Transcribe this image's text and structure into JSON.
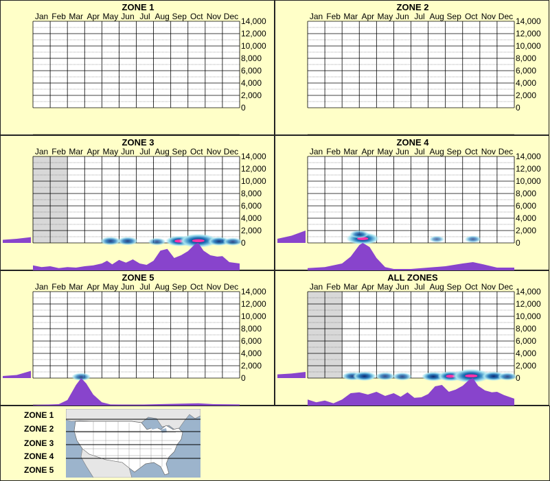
{
  "months": [
    "Jan",
    "Feb",
    "Mar",
    "Apr",
    "May",
    "Jun",
    "Jul",
    "Aug",
    "Sep",
    "Oct",
    "Nov",
    "Dec"
  ],
  "y_ticks": [
    "14,000",
    "12,000",
    "10,000",
    "8,000",
    "6,000",
    "4,000",
    "2,000",
    "0"
  ],
  "colors": {
    "background": "#ffffc8",
    "grid": "#000000",
    "density": "#8844cc",
    "shade": "#d8d8d8",
    "heat_low": "#a8e4f0",
    "heat_mid": "#2277bb",
    "heat_high": "#001a66",
    "heat_peak": "#ff33aa"
  },
  "chart_data": [
    {
      "type": "heatmap",
      "title": "ZONE 1",
      "ylim": [
        0,
        14000
      ],
      "shaded_months": [],
      "elevation_profile": [],
      "heat": [],
      "monthly_density": []
    },
    {
      "type": "heatmap",
      "title": "ZONE 2",
      "ylim": [
        0,
        14000
      ],
      "shaded_months": [],
      "elevation_profile": [],
      "heat": [],
      "monthly_density": []
    },
    {
      "type": "heatmap",
      "title": "ZONE 3",
      "ylim": [
        0,
        14000
      ],
      "shaded_months": [
        "Jan",
        "Feb"
      ],
      "elevation_profile": [
        0.15,
        0.2,
        0.28
      ],
      "heat": [
        {
          "month": 4.5,
          "elevation": 300,
          "intensity": 0.35
        },
        {
          "month": 5.5,
          "elevation": 300,
          "intensity": 0.35
        },
        {
          "month": 7.2,
          "elevation": 200,
          "intensity": 0.25
        },
        {
          "month": 8.5,
          "elevation": 300,
          "intensity": 0.6
        },
        {
          "month": 9.6,
          "elevation": 350,
          "intensity": 1.0
        },
        {
          "month": 10.8,
          "elevation": 250,
          "intensity": 0.4
        },
        {
          "month": 11.6,
          "elevation": 200,
          "intensity": 0.3
        }
      ],
      "monthly_density": [
        [
          0.0,
          0.18
        ],
        [
          0.5,
          0.12
        ],
        [
          1.0,
          0.15
        ],
        [
          1.5,
          0.08
        ],
        [
          2.0,
          0.12
        ],
        [
          2.5,
          0.1
        ],
        [
          3.0,
          0.15
        ],
        [
          3.5,
          0.18
        ],
        [
          4.0,
          0.25
        ],
        [
          4.3,
          0.35
        ],
        [
          4.6,
          0.22
        ],
        [
          5.0,
          0.38
        ],
        [
          5.4,
          0.28
        ],
        [
          5.8,
          0.4
        ],
        [
          6.2,
          0.25
        ],
        [
          6.6,
          0.2
        ],
        [
          7.0,
          0.35
        ],
        [
          7.4,
          0.72
        ],
        [
          7.8,
          0.78
        ],
        [
          8.2,
          0.45
        ],
        [
          8.6,
          0.55
        ],
        [
          9.0,
          0.7
        ],
        [
          9.4,
          0.95
        ],
        [
          9.6,
          1.0
        ],
        [
          9.9,
          0.72
        ],
        [
          10.3,
          0.55
        ],
        [
          10.7,
          0.5
        ],
        [
          11.0,
          0.52
        ],
        [
          11.4,
          0.3
        ],
        [
          12.0,
          0.25
        ]
      ]
    },
    {
      "type": "heatmap",
      "title": "ZONE 4",
      "ylim": [
        0,
        14000
      ],
      "shaded_months": [],
      "elevation_profile": [
        0.2,
        0.35,
        0.6
      ],
      "heat": [
        {
          "month": 3.2,
          "elevation": 700,
          "intensity": 0.8
        },
        {
          "month": 3.0,
          "elevation": 1400,
          "intensity": 0.3
        },
        {
          "month": 7.5,
          "elevation": 600,
          "intensity": 0.15
        },
        {
          "month": 9.6,
          "elevation": 600,
          "intensity": 0.2
        }
      ],
      "monthly_density": [
        [
          0.0,
          0.08
        ],
        [
          1.0,
          0.12
        ],
        [
          2.0,
          0.25
        ],
        [
          2.5,
          0.5
        ],
        [
          3.0,
          0.92
        ],
        [
          3.2,
          1.0
        ],
        [
          3.6,
          0.85
        ],
        [
          4.0,
          0.45
        ],
        [
          4.5,
          0.12
        ],
        [
          5.0,
          0.05
        ],
        [
          6.0,
          0.05
        ],
        [
          7.0,
          0.1
        ],
        [
          8.0,
          0.15
        ],
        [
          9.0,
          0.25
        ],
        [
          9.6,
          0.3
        ],
        [
          10.2,
          0.22
        ],
        [
          11.0,
          0.1
        ],
        [
          12.0,
          0.1
        ]
      ]
    },
    {
      "type": "heatmap",
      "title": "ZONE 5",
      "ylim": [
        0,
        14000
      ],
      "shaded_months": [],
      "elevation_profile": [
        0.1,
        0.15,
        0.35
      ],
      "heat": [
        {
          "month": 2.8,
          "elevation": 200,
          "intensity": 0.3
        }
      ],
      "monthly_density": [
        [
          0.0,
          0.02
        ],
        [
          1.5,
          0.05
        ],
        [
          2.0,
          0.2
        ],
        [
          2.5,
          0.75
        ],
        [
          2.8,
          1.0
        ],
        [
          3.1,
          0.8
        ],
        [
          3.5,
          0.4
        ],
        [
          4.0,
          0.12
        ],
        [
          4.5,
          0.04
        ],
        [
          6.0,
          0.03
        ],
        [
          8.0,
          0.06
        ],
        [
          9.6,
          0.08
        ],
        [
          10.5,
          0.05
        ],
        [
          12.0,
          0.04
        ]
      ]
    },
    {
      "type": "heatmap",
      "title": "ALL ZONES",
      "ylim": [
        0,
        14000
      ],
      "shaded_months": [
        "Jan",
        "Feb"
      ],
      "elevation_profile": [
        0.18,
        0.22,
        0.3
      ],
      "heat": [
        {
          "month": 2.6,
          "elevation": 300,
          "intensity": 0.35
        },
        {
          "month": 3.3,
          "elevation": 300,
          "intensity": 0.45
        },
        {
          "month": 4.5,
          "elevation": 300,
          "intensity": 0.3
        },
        {
          "month": 5.5,
          "elevation": 250,
          "intensity": 0.3
        },
        {
          "month": 7.3,
          "elevation": 250,
          "intensity": 0.45
        },
        {
          "month": 8.3,
          "elevation": 300,
          "intensity": 0.55
        },
        {
          "month": 9.5,
          "elevation": 350,
          "intensity": 1.0
        },
        {
          "month": 10.8,
          "elevation": 300,
          "intensity": 0.45
        },
        {
          "month": 11.6,
          "elevation": 250,
          "intensity": 0.3
        }
      ],
      "monthly_density": [
        [
          0.0,
          0.22
        ],
        [
          0.5,
          0.12
        ],
        [
          1.0,
          0.18
        ],
        [
          1.5,
          0.08
        ],
        [
          2.0,
          0.22
        ],
        [
          2.5,
          0.45
        ],
        [
          3.0,
          0.48
        ],
        [
          3.5,
          0.4
        ],
        [
          4.0,
          0.5
        ],
        [
          4.5,
          0.35
        ],
        [
          5.0,
          0.45
        ],
        [
          5.4,
          0.32
        ],
        [
          5.8,
          0.48
        ],
        [
          6.2,
          0.28
        ],
        [
          6.6,
          0.3
        ],
        [
          7.0,
          0.42
        ],
        [
          7.4,
          0.7
        ],
        [
          7.8,
          0.75
        ],
        [
          8.2,
          0.5
        ],
        [
          8.6,
          0.58
        ],
        [
          9.0,
          0.72
        ],
        [
          9.4,
          0.95
        ],
        [
          9.6,
          1.0
        ],
        [
          9.9,
          0.72
        ],
        [
          10.3,
          0.55
        ],
        [
          10.7,
          0.48
        ],
        [
          11.0,
          0.5
        ],
        [
          11.4,
          0.38
        ],
        [
          12.0,
          0.25
        ]
      ]
    }
  ],
  "legend": {
    "zones": [
      "ZONE 1",
      "ZONE 2",
      "ZONE 3",
      "ZONE 4",
      "ZONE 5"
    ]
  }
}
